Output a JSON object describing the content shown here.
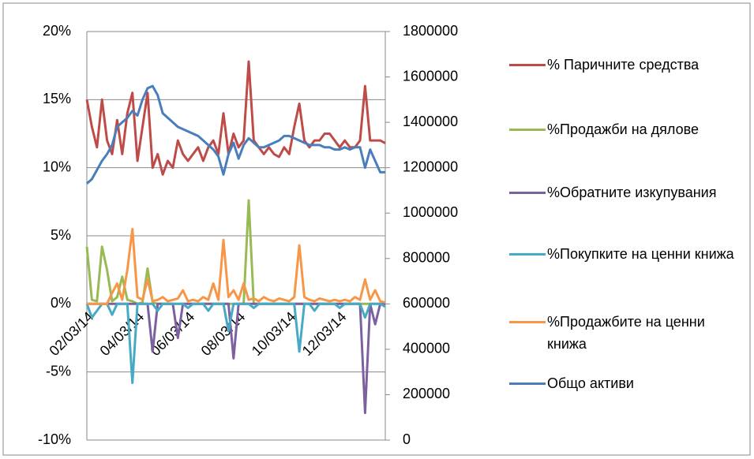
{
  "chart_data": {
    "type": "line",
    "categories": [
      "02/03/14",
      null,
      null,
      null,
      null,
      null,
      null,
      null,
      null,
      null,
      "04/03/14",
      null,
      null,
      null,
      null,
      null,
      null,
      null,
      null,
      null,
      "06/03/14",
      null,
      null,
      null,
      null,
      null,
      null,
      null,
      null,
      null,
      "08/03/14",
      null,
      null,
      null,
      null,
      null,
      null,
      null,
      null,
      null,
      "10/03/14",
      null,
      null,
      null,
      null,
      null,
      null,
      null,
      null,
      null,
      "12/03/14",
      null,
      null,
      null,
      null,
      null,
      null,
      null,
      null,
      null
    ],
    "ylim": [
      -10,
      20
    ],
    "yticks": [
      {
        "value": -10,
        "label": "-10%"
      },
      {
        "value": -5,
        "label": "-5%"
      },
      {
        "value": 0,
        "label": "0%"
      },
      {
        "value": 5,
        "label": "5%"
      },
      {
        "value": 10,
        "label": "10%"
      },
      {
        "value": 15,
        "label": "15%"
      },
      {
        "value": 20,
        "label": "20%"
      }
    ],
    "y2lim": [
      0,
      1800000
    ],
    "y2ticks": [
      0,
      200000,
      400000,
      600000,
      800000,
      1000000,
      1200000,
      1400000,
      1600000,
      1800000
    ],
    "grid": true,
    "legend": "right",
    "series": [
      {
        "name": "% Паричните средства",
        "color": "#be4b48",
        "values": [
          15,
          13,
          11.5,
          15,
          12,
          11,
          13.5,
          11,
          14,
          15.5,
          10.5,
          13,
          15.5,
          10,
          11,
          9.5,
          10.5,
          10,
          12,
          11,
          10.5,
          11,
          11.5,
          10.5,
          11.5,
          12,
          11,
          14,
          11,
          12.5,
          11.5,
          12,
          17.8,
          12,
          11.5,
          11,
          11.5,
          11,
          10.8,
          11.5,
          11,
          13,
          14.7,
          12,
          11.5,
          12,
          12,
          12.5,
          12.5,
          12,
          11.5,
          12,
          11.5,
          11.5,
          12,
          16,
          12,
          12,
          12,
          11.8
        ]
      },
      {
        "name": "%Продажби на дялове",
        "color": "#98b954",
        "values": [
          4.2,
          0.3,
          0.2,
          4.2,
          2.5,
          0.2,
          0.5,
          2,
          0.3,
          0.2,
          0,
          0.1,
          2.6,
          0.1,
          0,
          0,
          0,
          0,
          0,
          0,
          0,
          0,
          0,
          0,
          0,
          0,
          0,
          0,
          0,
          0,
          0,
          0,
          7.6,
          0,
          0,
          0,
          0,
          0,
          0,
          0,
          0,
          0,
          0,
          0,
          0,
          0,
          0,
          0,
          0,
          0,
          0,
          0,
          0,
          0,
          0,
          0,
          0,
          0,
          0,
          0
        ]
      },
      {
        "name": "%Обратните изкупувания",
        "color": "#7d60a0",
        "values": [
          0,
          0,
          0,
          0,
          0,
          0,
          0,
          0,
          0,
          0,
          0,
          0,
          0,
          -3.5,
          0,
          0,
          0,
          0,
          -2.5,
          0,
          0,
          0,
          0,
          0,
          0,
          0,
          0,
          0,
          0,
          -4,
          0,
          0,
          0,
          0,
          0,
          0,
          0,
          0,
          0,
          0,
          0,
          0,
          0,
          0,
          0,
          0,
          0,
          0,
          0,
          0,
          0,
          0,
          0,
          0,
          0,
          -8,
          0,
          -1.5,
          0,
          0
        ]
      },
      {
        "name": "%Покупките на ценни книжа",
        "color": "#46aac5",
        "values": [
          0,
          -1,
          -0.5,
          0,
          0,
          -0.8,
          0,
          0,
          0,
          -5.8,
          0,
          0,
          0,
          0,
          -0.5,
          0,
          0,
          0,
          0,
          0,
          -0.3,
          0,
          0,
          0,
          -0.5,
          0,
          0,
          0,
          -2,
          0,
          0,
          0,
          0,
          -0.3,
          0,
          0,
          0,
          0,
          0,
          0,
          0,
          0,
          -3.5,
          0,
          0,
          -0.5,
          0,
          0,
          0,
          0,
          -0.3,
          0,
          0,
          0,
          0,
          -1,
          0,
          0,
          0,
          -0.2
        ]
      },
      {
        "name": "%Продажбите на ценни книжа",
        "color": "#f79646",
        "values": [
          0,
          0,
          0,
          0,
          0,
          0.8,
          1.5,
          0.3,
          2.5,
          5.5,
          0.5,
          0.3,
          1.8,
          0.2,
          0.3,
          0.5,
          0.2,
          0.3,
          0.4,
          1,
          0.2,
          0.3,
          0.2,
          0.5,
          0.3,
          1.5,
          0.3,
          4.7,
          0.5,
          1,
          0.3,
          1.5,
          0.3,
          0.4,
          0.2,
          0.5,
          0.3,
          0.2,
          0.4,
          0.3,
          0.2,
          0.5,
          4.3,
          0.5,
          0.3,
          0.2,
          0.4,
          0.3,
          0.2,
          0.3,
          0.2,
          0.3,
          0.2,
          0.5,
          0.3,
          1.8,
          0.3,
          1,
          0.2,
          0.1
        ]
      },
      {
        "name": "Общо активи",
        "color": "#4a7ebb",
        "axis": "y2",
        "values": [
          1130000,
          1150000,
          1190000,
          1230000,
          1260000,
          1300000,
          1380000,
          1400000,
          1420000,
          1450000,
          1430000,
          1500000,
          1550000,
          1560000,
          1520000,
          1440000,
          1420000,
          1400000,
          1380000,
          1370000,
          1360000,
          1350000,
          1340000,
          1320000,
          1300000,
          1280000,
          1250000,
          1170000,
          1260000,
          1310000,
          1240000,
          1300000,
          1330000,
          1310000,
          1290000,
          1290000,
          1300000,
          1310000,
          1320000,
          1340000,
          1340000,
          1330000,
          1320000,
          1310000,
          1300000,
          1300000,
          1300000,
          1290000,
          1290000,
          1280000,
          1280000,
          1290000,
          1280000,
          1290000,
          1290000,
          1200000,
          1280000,
          1230000,
          1180000,
          1180000
        ]
      }
    ]
  }
}
